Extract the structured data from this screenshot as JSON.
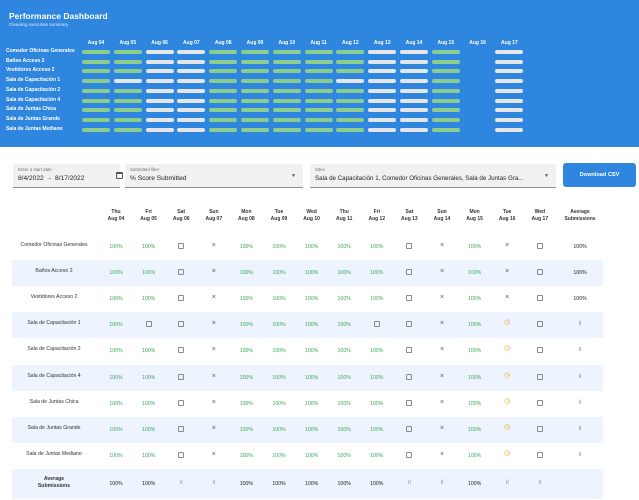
{
  "header": {
    "title": "Performance Dashboard",
    "subtitle": "Cleaning execution summary",
    "dates": [
      "Aug 04",
      "Aug 05",
      "Aug 06",
      "Aug 07",
      "Aug 08",
      "Aug 09",
      "Aug 10",
      "Aug 11",
      "Aug 12",
      "Aug 13",
      "Aug 14",
      "Aug 15",
      "Aug 16",
      "Aug 17"
    ],
    "sites": [
      "Comedor Oficinas Generales",
      "Baños Acceso 2",
      "Vestidores Acceso 2",
      "Sala de Capacitación 1",
      "Sala de Capacitación 2",
      "Sala de Capacitación 4",
      "Sala de Juntas Chica",
      "Sala de Juntas Grande",
      "Sala de Juntas Mediano"
    ],
    "heatmap_colors": {
      "done": "#8ccc8c",
      "none": "#e4e6ea"
    }
  },
  "filters": {
    "date_label": "Enter a start date",
    "date_start": "8/4/2022",
    "date_sep": "–",
    "date_end": "8/17/2022",
    "submitted_label": "Submitted filter",
    "submitted_value": "% Score Submitted",
    "sites_label": "Sites",
    "sites_value": "Sala de Capacitación 1, Comedor Oficinas Generales, Sala de Juntas Gra...",
    "download_label": "Download CSV"
  },
  "table": {
    "columns": [
      {
        "day": "Thu",
        "date": "Aug 04"
      },
      {
        "day": "Fri",
        "date": "Aug 05"
      },
      {
        "day": "Sat",
        "date": "Aug 06"
      },
      {
        "day": "Sun",
        "date": "Aug 07"
      },
      {
        "day": "Mon",
        "date": "Aug 08"
      },
      {
        "day": "Tue",
        "date": "Aug 09"
      },
      {
        "day": "Wed",
        "date": "Aug 10"
      },
      {
        "day": "Thu",
        "date": "Aug 11"
      },
      {
        "day": "Fri",
        "date": "Aug 12"
      },
      {
        "day": "Sat",
        "date": "Aug 13"
      },
      {
        "day": "Sun",
        "date": "Aug 14"
      },
      {
        "day": "Mon",
        "date": "Aug 15"
      },
      {
        "day": "Tue",
        "date": "Aug 16"
      },
      {
        "day": "Wed",
        "date": "Aug 17"
      }
    ],
    "avg_header_1": "Average",
    "avg_header_2": "Submissions",
    "rows": [
      {
        "site": "Comedor Oficinas Generales",
        "cells": [
          "100%",
          "100%",
          "cal",
          "x",
          "100%",
          "100%",
          "100%",
          "100%",
          "100%",
          "cal",
          "x",
          "100%",
          "x",
          "cal"
        ],
        "avg": "100%"
      },
      {
        "site": "Baños Acceso 2",
        "cells": [
          "100%",
          "100%",
          "cal",
          "x",
          "100%",
          "100%",
          "100%",
          "100%",
          "100%",
          "cal",
          "x",
          "100%",
          "x",
          "cal"
        ],
        "avg": "100%"
      },
      {
        "site": "Vestidores Acceso 2",
        "cells": [
          "100%",
          "100%",
          "cal",
          "x",
          "100%",
          "100%",
          "100%",
          "100%",
          "100%",
          "cal",
          "x",
          "100%",
          "x",
          "cal"
        ],
        "avg": "100%"
      },
      {
        "site": "Sala de Capacitación 1",
        "cells": [
          "100%",
          "cal",
          "cal",
          "x",
          "100%",
          "100%",
          "100%",
          "100%",
          "cal",
          "cal",
          "x",
          "100%",
          "clock",
          "cal"
        ],
        "avg": "chart"
      },
      {
        "site": "Sala de Capacitación 2",
        "cells": [
          "100%",
          "100%",
          "cal",
          "x",
          "100%",
          "100%",
          "100%",
          "100%",
          "100%",
          "cal",
          "x",
          "100%",
          "clock",
          "cal"
        ],
        "avg": "chart"
      },
      {
        "site": "Sala de Capacitación 4",
        "cells": [
          "100%",
          "100%",
          "cal",
          "x",
          "100%",
          "100%",
          "100%",
          "100%",
          "100%",
          "cal",
          "x",
          "100%",
          "clock",
          "cal"
        ],
        "avg": "chart"
      },
      {
        "site": "Sala de Juntas Chica",
        "cells": [
          "100%",
          "100%",
          "cal",
          "x",
          "100%",
          "100%",
          "100%",
          "100%",
          "100%",
          "cal",
          "x",
          "100%",
          "clock",
          "cal"
        ],
        "avg": "chart"
      },
      {
        "site": "Sala de Juntas Grande",
        "cells": [
          "100%",
          "100%",
          "cal",
          "x",
          "100%",
          "100%",
          "100%",
          "100%",
          "100%",
          "cal",
          "x",
          "100%",
          "clock",
          "cal"
        ],
        "avg": "chart"
      },
      {
        "site": "Sala de Juntas Mediano",
        "cells": [
          "100%",
          "100%",
          "cal",
          "x",
          "100%",
          "100%",
          "100%",
          "100%",
          "100%",
          "cal",
          "x",
          "100%",
          "clock",
          "cal"
        ],
        "avg": "chart"
      }
    ],
    "footer": {
      "label_1": "Average",
      "label_2": "Submissions",
      "cells": [
        "100%",
        "100%",
        "chart",
        "chart",
        "100%",
        "100%",
        "100%",
        "100%",
        "100%",
        "chart",
        "chart",
        "100%",
        "chart",
        "chart"
      ]
    }
  },
  "icons": {
    "cross": "×",
    "clock": "◷",
    "chart": "ıl",
    "calendar": "calendar-icon",
    "caret": "▼"
  }
}
